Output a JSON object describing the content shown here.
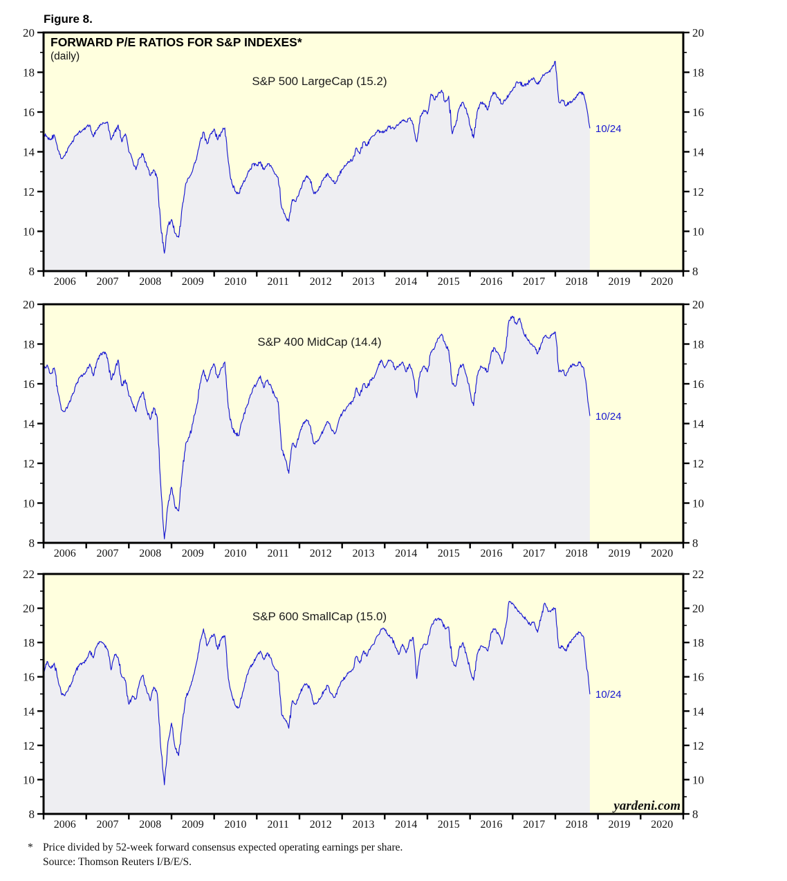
{
  "figure_label": "Figure 8.",
  "title": "FORWARD P/E RATIOS FOR S&P INDEXES*",
  "subtitle": "(daily)",
  "watermark": "yardeni.com",
  "footnote": {
    "marker": "*",
    "line1": "Price divided by 52-week forward consensus expected operating earnings per share.",
    "line2": "Source: Thomson Reuters I/B/E/S."
  },
  "colors": {
    "page_background": "#ffffff",
    "plot_background": "#ffffde",
    "area_fill": "#eeeef2",
    "line": "#1717d0",
    "annotation": "#1717d0",
    "frame": "#000000"
  },
  "chart_data": [
    {
      "type": "area",
      "name": "sp500-largecap-forward-pe",
      "label": "S&P 500 LargeCap (15.2)",
      "end_label": "10/24",
      "end_value": 15.2,
      "end_x": 2018.81,
      "ylim": [
        8,
        20
      ],
      "y_major_ticks": [
        8,
        10,
        12,
        14,
        16,
        18,
        20
      ],
      "y_minor_ticks": [
        9,
        11,
        13,
        15,
        17,
        19
      ],
      "x_range": [
        2006,
        2021
      ],
      "x_year_labels": [
        "2006",
        "2007",
        "2008",
        "2009",
        "2010",
        "2011",
        "2012",
        "2013",
        "2014",
        "2015",
        "2016",
        "2017",
        "2018",
        "2019",
        "2020"
      ],
      "monthly_start": "2006-01",
      "monthly_values": [
        14.9,
        14.75,
        14.6,
        14.85,
        14.1,
        13.65,
        13.8,
        14.2,
        14.5,
        14.8,
        15.0,
        15.1,
        15.25,
        15.35,
        14.75,
        15.1,
        15.4,
        15.45,
        15.5,
        14.6,
        15.0,
        15.35,
        14.5,
        14.9,
        14.0,
        13.6,
        13.1,
        13.7,
        13.9,
        13.3,
        12.8,
        13.1,
        12.7,
        10.2,
        8.9,
        10.3,
        10.6,
        9.9,
        9.7,
        11.2,
        12.4,
        12.7,
        13.1,
        13.6,
        14.5,
        15.0,
        14.4,
        14.9,
        15.15,
        14.6,
        15.0,
        15.2,
        13.5,
        12.4,
        12.0,
        11.9,
        12.4,
        12.7,
        13.1,
        13.4,
        13.3,
        13.5,
        13.1,
        13.4,
        13.3,
        12.9,
        12.7,
        11.2,
        10.8,
        10.5,
        11.6,
        11.5,
        12.0,
        12.5,
        12.8,
        12.6,
        11.9,
        12.0,
        12.3,
        12.7,
        12.9,
        12.6,
        12.4,
        12.8,
        13.1,
        13.3,
        13.5,
        13.6,
        14.2,
        13.9,
        14.5,
        14.3,
        14.7,
        14.8,
        15.1,
        15.0,
        15.0,
        15.3,
        15.2,
        15.2,
        15.4,
        15.6,
        15.5,
        15.7,
        15.4,
        14.5,
        15.8,
        16.1,
        15.9,
        16.9,
        16.6,
        16.9,
        17.1,
        16.5,
        16.8,
        14.9,
        15.4,
        16.2,
        16.5,
        16.1,
        15.3,
        14.7,
        16.0,
        16.5,
        16.4,
        16.1,
        16.8,
        17.0,
        16.7,
        16.4,
        16.6,
        16.9,
        17.1,
        17.5,
        17.5,
        17.3,
        17.4,
        17.6,
        17.7,
        17.4,
        17.7,
        17.9,
        18.0,
        18.2,
        18.55,
        16.5,
        16.6,
        16.3,
        16.5,
        16.6,
        16.8,
        17.0,
        16.9
      ]
    },
    {
      "type": "area",
      "name": "sp400-midcap-forward-pe",
      "label": "S&P 400 MidCap (14.4)",
      "end_label": "10/24",
      "end_value": 14.4,
      "end_x": 2018.81,
      "ylim": [
        8,
        20
      ],
      "y_major_ticks": [
        8,
        10,
        12,
        14,
        16,
        18,
        20
      ],
      "y_minor_ticks": [
        9,
        11,
        13,
        15,
        17,
        19
      ],
      "x_range": [
        2006,
        2021
      ],
      "x_year_labels": [
        "2006",
        "2007",
        "2008",
        "2009",
        "2010",
        "2011",
        "2012",
        "2013",
        "2014",
        "2015",
        "2016",
        "2017",
        "2018",
        "2019",
        "2020"
      ],
      "monthly_start": "2006-01",
      "monthly_values": [
        16.7,
        16.95,
        16.5,
        16.8,
        15.6,
        14.7,
        14.6,
        15.0,
        15.4,
        15.9,
        16.3,
        16.4,
        16.6,
        17.0,
        16.4,
        17.1,
        17.5,
        17.6,
        17.3,
        16.2,
        16.6,
        17.2,
        15.9,
        16.2,
        15.4,
        15.0,
        14.6,
        15.3,
        15.6,
        14.7,
        14.2,
        14.8,
        14.3,
        10.8,
        8.2,
        9.9,
        10.8,
        9.8,
        9.6,
        11.5,
        13.0,
        13.3,
        14.0,
        14.8,
        16.0,
        16.7,
        16.1,
        16.7,
        17.0,
        16.3,
        16.8,
        17.1,
        14.8,
        13.8,
        13.5,
        13.4,
        14.2,
        14.8,
        15.3,
        15.8,
        16.0,
        16.4,
        15.8,
        16.2,
        15.9,
        15.4,
        15.1,
        12.7,
        12.2,
        11.5,
        13.0,
        12.8,
        13.5,
        14.0,
        14.2,
        13.9,
        13.0,
        13.1,
        13.4,
        13.8,
        14.1,
        13.7,
        13.5,
        14.1,
        14.5,
        14.7,
        15.0,
        15.1,
        15.8,
        15.4,
        16.0,
        15.8,
        16.2,
        16.3,
        16.8,
        17.2,
        16.8,
        17.2,
        17.1,
        16.7,
        16.9,
        17.1,
        16.6,
        17.0,
        16.4,
        15.3,
        16.6,
        16.9,
        16.6,
        17.6,
        17.8,
        18.3,
        18.5,
        18.0,
        17.7,
        16.0,
        15.9,
        16.8,
        17.0,
        16.4,
        15.6,
        14.9,
        16.4,
        16.9,
        16.8,
        16.6,
        17.6,
        17.8,
        17.5,
        17.0,
        17.7,
        19.2,
        19.4,
        19.0,
        19.3,
        18.6,
        18.3,
        18.0,
        17.9,
        17.5,
        18.0,
        18.4,
        18.3,
        18.5,
        18.6,
        16.6,
        16.7,
        16.4,
        16.8,
        17.0,
        16.9,
        17.1,
        16.8
      ]
    },
    {
      "type": "area",
      "name": "sp600-smallcap-forward-pe",
      "label": "S&P 600 SmallCap (15.0)",
      "end_label": "10/24",
      "end_value": 15.0,
      "end_x": 2018.81,
      "ylim": [
        8,
        22
      ],
      "y_major_ticks": [
        8,
        10,
        12,
        14,
        16,
        18,
        20,
        22
      ],
      "y_minor_ticks": [
        9,
        11,
        13,
        15,
        17,
        19,
        21
      ],
      "x_range": [
        2006,
        2021
      ],
      "x_year_labels": [
        "2006",
        "2007",
        "2008",
        "2009",
        "2010",
        "2011",
        "2012",
        "2013",
        "2014",
        "2015",
        "2016",
        "2017",
        "2018",
        "2019",
        "2020"
      ],
      "monthly_start": "2006-01",
      "monthly_values": [
        16.2,
        16.9,
        16.5,
        16.8,
        15.9,
        15.0,
        14.9,
        15.3,
        15.7,
        16.3,
        16.7,
        16.8,
        17.0,
        17.5,
        17.1,
        17.8,
        18.05,
        17.9,
        17.6,
        16.4,
        17.3,
        17.1,
        16.0,
        15.8,
        14.4,
        14.9,
        14.7,
        15.7,
        16.1,
        15.2,
        14.6,
        15.4,
        15.0,
        11.8,
        9.7,
        12.2,
        13.3,
        11.9,
        11.4,
        13.2,
        14.8,
        15.2,
        15.9,
        16.8,
        18.0,
        18.8,
        17.8,
        18.3,
        18.5,
        17.6,
        18.2,
        18.4,
        15.9,
        14.9,
        14.3,
        14.2,
        15.1,
        15.9,
        16.5,
        16.8,
        17.2,
        17.5,
        17.0,
        17.4,
        17.1,
        16.5,
        16.3,
        13.8,
        13.5,
        13.0,
        14.6,
        14.4,
        15.0,
        15.4,
        15.6,
        15.3,
        14.4,
        14.5,
        14.8,
        15.2,
        15.5,
        15.0,
        14.8,
        15.4,
        15.8,
        16.0,
        16.3,
        16.4,
        17.2,
        16.8,
        17.5,
        17.2,
        17.7,
        17.9,
        18.4,
        18.8,
        18.8,
        18.4,
        18.3,
        17.7,
        17.3,
        17.9,
        17.4,
        18.1,
        18.3,
        15.9,
        17.5,
        17.9,
        17.9,
        18.9,
        19.3,
        19.4,
        19.3,
        18.8,
        18.9,
        16.9,
        16.6,
        17.7,
        18.0,
        17.3,
        16.4,
        15.8,
        17.3,
        17.8,
        17.7,
        17.5,
        18.6,
        18.8,
        18.5,
        17.9,
        18.9,
        20.4,
        20.3,
        20.0,
        19.7,
        19.5,
        19.3,
        19.0,
        19.2,
        18.6,
        19.5,
        20.3,
        19.8,
        19.9,
        20.0,
        17.7,
        17.8,
        17.5,
        18.0,
        18.2,
        18.5,
        18.6,
        18.3
      ]
    }
  ]
}
